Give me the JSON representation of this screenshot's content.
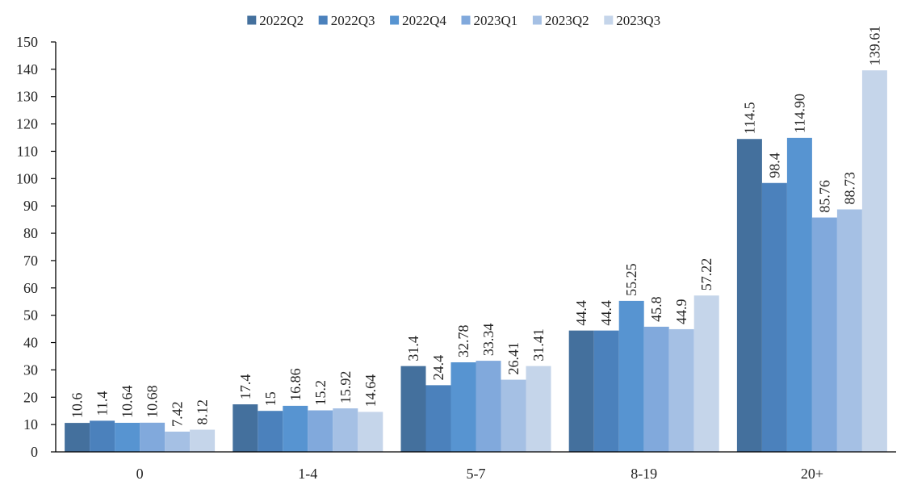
{
  "chart_data": {
    "type": "bar",
    "categories": [
      "0",
      "1-4",
      "5-7",
      "8-19",
      "20+"
    ],
    "series": [
      {
        "name": "2022Q2",
        "color": "#44709d",
        "values": [
          10.6,
          17.4,
          31.4,
          44.4,
          114.5
        ],
        "labels": [
          "10.6",
          "17.4",
          "31.4",
          "44.4",
          "114.5"
        ]
      },
      {
        "name": "2022Q3",
        "color": "#4b81bc",
        "values": [
          11.4,
          15,
          24.4,
          44.4,
          98.4
        ],
        "labels": [
          "11.4",
          "15",
          "24.4",
          "44.4",
          "98.4"
        ]
      },
      {
        "name": "2022Q4",
        "color": "#5794d1",
        "values": [
          10.64,
          16.86,
          32.78,
          55.25,
          114.9
        ],
        "labels": [
          "10.64",
          "16.86",
          "32.78",
          "55.25",
          "114.90"
        ]
      },
      {
        "name": "2023Q1",
        "color": "#81a9dc",
        "values": [
          10.68,
          15.2,
          33.34,
          45.8,
          85.76
        ],
        "labels": [
          "10.68",
          "15.2",
          "33.34",
          "45.8",
          "85.76"
        ]
      },
      {
        "name": "2023Q2",
        "color": "#a5c0e4",
        "values": [
          7.42,
          15.92,
          26.41,
          44.9,
          88.73
        ],
        "labels": [
          "7.42",
          "15.92",
          "26.41",
          "44.9",
          "88.73"
        ]
      },
      {
        "name": "2023Q3",
        "color": "#c5d5ea",
        "values": [
          8.12,
          14.64,
          31.41,
          57.22,
          139.61
        ],
        "labels": [
          "8.12",
          "14.64",
          "31.41",
          "57.22",
          "139.61"
        ]
      }
    ],
    "ylim": [
      0,
      150
    ],
    "yticks": [
      0,
      10,
      20,
      30,
      40,
      50,
      60,
      70,
      80,
      90,
      100,
      110,
      120,
      130,
      140,
      150
    ],
    "grid": false,
    "legend": "top-center",
    "title": "",
    "xlabel": "",
    "ylabel": ""
  }
}
